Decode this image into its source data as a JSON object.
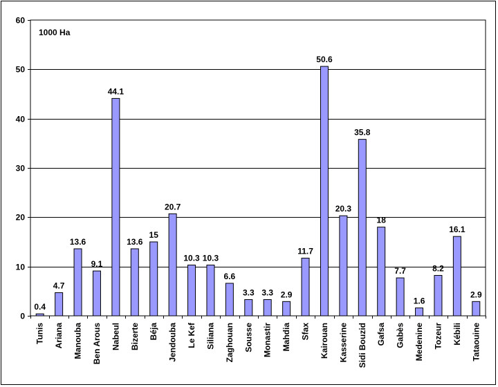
{
  "chart_data": {
    "type": "bar",
    "unit_label": "1000 Ha",
    "categories": [
      "Tunis",
      "Ariana",
      "Manouba",
      "Ben Arous",
      "Nabeul",
      "Bizerte",
      "Béja",
      "Jendouba",
      "Le Kef",
      "Siliana",
      "Zaghouan",
      "Sousse",
      "Monastir",
      "Mahdia",
      "Sfax",
      "Kairouan",
      "Kasserine",
      "Sidi Bouzid",
      "Gafsa",
      "Gabès",
      "Medenine",
      "Tozeur",
      "Kébili",
      "Tataouine"
    ],
    "values": [
      0.4,
      4.7,
      13.6,
      9.1,
      44.1,
      13.6,
      15,
      20.7,
      10.3,
      10.3,
      6.6,
      3.3,
      3.3,
      2.9,
      11.7,
      50.6,
      20.3,
      35.8,
      18,
      7.7,
      1.6,
      8.2,
      16.1,
      2.9
    ],
    "value_labels": [
      "0.4",
      "4.7",
      "13.6",
      "9.1",
      "44.1",
      "13.6",
      "15",
      "20.7",
      "10.3",
      "10.3",
      "6.6",
      "3.3",
      "3.3",
      "2.9",
      "11.7",
      "50.6",
      "20.3",
      "35.8",
      "18",
      "7.7",
      "1.6",
      "8.2",
      "16.1",
      "2.9"
    ],
    "yticks": [
      "0",
      "10",
      "20",
      "30",
      "40",
      "50",
      "60"
    ],
    "ylim": [
      0,
      60
    ],
    "grid": true,
    "colors": {
      "bar": "#9999FF",
      "bar_stroke": "#000000",
      "grid": "#000000",
      "background": "#ffffff"
    }
  }
}
